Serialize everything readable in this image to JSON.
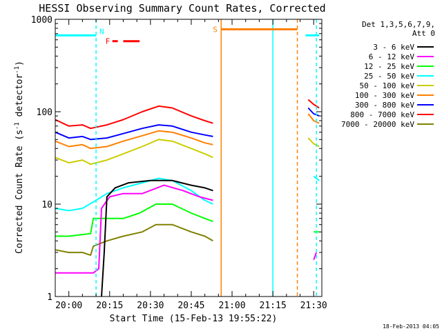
{
  "chart_data": {
    "type": "line",
    "title": "HESSI Observing Summary Count Rates, Corrected",
    "ylabel_main": "Corrected Count Rate (s",
    "ylabel_sup1": "-1",
    "ylabel_mid": " detector",
    "ylabel_sup2": "-1",
    "ylabel_end": ")",
    "xlabel": "Start Time (15-Feb-13 19:55:22)",
    "footer": "18-Feb-2013 04:05",
    "y_scale": "log",
    "ylim": [
      1,
      1000
    ],
    "xlim": [
      "19:55",
      "21:33"
    ],
    "grid": false,
    "x_ticks": [
      "20:00",
      "20:15",
      "20:30",
      "20:45",
      "21:00",
      "21:15",
      "21:30"
    ],
    "y_ticks": [
      "1",
      "10",
      "100",
      "1000"
    ],
    "legend": {
      "position": "right",
      "header_line1": "Det 1,3,5,6,7,9,",
      "header_line2": "Att 0"
    },
    "series": [
      {
        "name": "3 - 6 keV",
        "color": "#000000",
        "segments": [
          [
            [
              "20:12",
              1
            ],
            [
              "20:13",
              3
            ],
            [
              "20:14",
              12
            ],
            [
              "20:17",
              15
            ],
            [
              "20:22",
              17
            ],
            [
              "20:30",
              18
            ],
            [
              "20:38",
              18
            ],
            [
              "20:45",
              16
            ],
            [
              "20:50",
              15
            ],
            [
              "20:53",
              14
            ]
          ]
        ]
      },
      {
        "name": "6 - 12 keV",
        "color": "#ff00ff",
        "segments": [
          [
            [
              "19:55",
              1.8
            ],
            [
              "20:00",
              1.8
            ],
            [
              "20:05",
              1.8
            ],
            [
              "20:09",
              1.8
            ],
            [
              "20:11",
              2
            ],
            [
              "20:12",
              9
            ],
            [
              "20:15",
              12
            ],
            [
              "20:20",
              13
            ],
            [
              "20:27",
              13
            ],
            [
              "20:35",
              16
            ],
            [
              "20:42",
              14
            ],
            [
              "20:48",
              12
            ],
            [
              "20:53",
              11
            ]
          ],
          [
            [
              "21:30",
              2.5
            ],
            [
              "21:31",
              3
            ]
          ]
        ]
      },
      {
        "name": "12 - 25 keV",
        "color": "#00ff00",
        "segments": [
          [
            [
              "19:55",
              4.5
            ],
            [
              "20:00",
              4.5
            ],
            [
              "20:08",
              4.8
            ],
            [
              "20:09",
              7
            ],
            [
              "20:14",
              7
            ],
            [
              "20:20",
              7
            ],
            [
              "20:26",
              8
            ],
            [
              "20:32",
              10
            ],
            [
              "20:38",
              10
            ],
            [
              "20:45",
              8
            ],
            [
              "20:50",
              7
            ],
            [
              "20:53",
              6.5
            ]
          ],
          [
            [
              "21:30",
              5
            ],
            [
              "21:32",
              5
            ]
          ]
        ]
      },
      {
        "name": "25 - 50 keV",
        "color": "#00ffff",
        "segments": [
          [
            [
              "19:55",
              9
            ],
            [
              "20:00",
              8.5
            ],
            [
              "20:05",
              9
            ],
            [
              "20:10",
              11
            ],
            [
              "20:14",
              13
            ],
            [
              "20:20",
              15
            ],
            [
              "20:27",
              17
            ],
            [
              "20:33",
              19
            ],
            [
              "20:38",
              18
            ],
            [
              "20:45",
              14
            ],
            [
              "20:50",
              11
            ],
            [
              "20:53",
              10
            ]
          ],
          [
            [
              "21:30",
              20
            ],
            [
              "21:32",
              18
            ]
          ]
        ]
      },
      {
        "name": "50 - 100 keV",
        "color": "#cccc00",
        "segments": [
          [
            [
              "19:55",
              32
            ],
            [
              "20:00",
              28
            ],
            [
              "20:05",
              30
            ],
            [
              "20:08",
              27
            ],
            [
              "20:14",
              30
            ],
            [
              "20:20",
              35
            ],
            [
              "20:27",
              42
            ],
            [
              "20:33",
              50
            ],
            [
              "20:38",
              48
            ],
            [
              "20:45",
              40
            ],
            [
              "20:50",
              35
            ],
            [
              "20:53",
              32
            ]
          ],
          [
            [
              "21:28",
              52
            ],
            [
              "21:30",
              45
            ],
            [
              "21:32",
              42
            ]
          ]
        ]
      },
      {
        "name": "100 - 300 keV",
        "color": "#ff8000",
        "segments": [
          [
            [
              "19:55",
              48
            ],
            [
              "20:00",
              42
            ],
            [
              "20:05",
              44
            ],
            [
              "20:08",
              40
            ],
            [
              "20:14",
              42
            ],
            [
              "20:20",
              48
            ],
            [
              "20:27",
              55
            ],
            [
              "20:33",
              62
            ],
            [
              "20:38",
              60
            ],
            [
              "20:45",
              52
            ],
            [
              "20:50",
              46
            ],
            [
              "20:53",
              44
            ]
          ],
          [
            [
              "21:28",
              95
            ],
            [
              "21:30",
              80
            ],
            [
              "21:32",
              75
            ]
          ]
        ]
      },
      {
        "name": "300 - 800 keV",
        "color": "#0000ff",
        "segments": [
          [
            [
              "19:55",
              60
            ],
            [
              "20:00",
              52
            ],
            [
              "20:05",
              54
            ],
            [
              "20:08",
              50
            ],
            [
              "20:14",
              52
            ],
            [
              "20:20",
              58
            ],
            [
              "20:27",
              66
            ],
            [
              "20:33",
              72
            ],
            [
              "20:38",
              70
            ],
            [
              "20:45",
              60
            ],
            [
              "20:50",
              56
            ],
            [
              "20:53",
              54
            ]
          ],
          [
            [
              "21:28",
              110
            ],
            [
              "21:30",
              95
            ],
            [
              "21:32",
              90
            ]
          ]
        ]
      },
      {
        "name": "800 - 7000 keV",
        "color": "#ff0000",
        "segments": [
          [
            [
              "19:55",
              82
            ],
            [
              "20:00",
              70
            ],
            [
              "20:05",
              72
            ],
            [
              "20:08",
              66
            ],
            [
              "20:14",
              72
            ],
            [
              "20:20",
              82
            ],
            [
              "20:27",
              100
            ],
            [
              "20:33",
              115
            ],
            [
              "20:38",
              110
            ],
            [
              "20:45",
              90
            ],
            [
              "20:50",
              80
            ],
            [
              "20:53",
              75
            ]
          ],
          [
            [
              "21:28",
              135
            ],
            [
              "21:30",
              120
            ],
            [
              "21:32",
              110
            ]
          ]
        ]
      },
      {
        "name": "7000 - 20000 keV",
        "color": "#808000",
        "segments": [
          [
            [
              "19:55",
              3.2
            ],
            [
              "20:00",
              3
            ],
            [
              "20:05",
              3
            ],
            [
              "20:08",
              2.8
            ],
            [
              "20:09",
              3.5
            ],
            [
              "20:14",
              4
            ],
            [
              "20:20",
              4.5
            ],
            [
              "20:27",
              5
            ],
            [
              "20:32",
              6
            ],
            [
              "20:38",
              6
            ],
            [
              "20:45",
              5
            ],
            [
              "20:50",
              4.5
            ],
            [
              "20:53",
              4
            ]
          ]
        ]
      }
    ],
    "annotations": {
      "flare_bars": {
        "label": "F",
        "color": "#ff0000",
        "intervals": [
          [
            "20:16",
            "20:18"
          ],
          [
            "20:20",
            "20:26"
          ]
        ],
        "level": 580
      },
      "saa_bar": {
        "label": "S",
        "color": "#ff8000",
        "intervals": [
          [
            "20:56",
            "21:24"
          ]
        ],
        "level": 780
      },
      "night_bars": {
        "color": "#00ffff",
        "intervals": [
          [
            "19:55",
            "20:10"
          ],
          [
            "21:27",
            "21:32"
          ]
        ],
        "level": 670
      },
      "n_label": {
        "label": "N",
        "color": "#00ffff",
        "at": "20:11"
      },
      "vlines": [
        {
          "at": "20:10",
          "color": "#00ffff",
          "style": "dashed"
        },
        {
          "at": "20:56",
          "color": "#ff8000",
          "style": "solid"
        },
        {
          "at": "21:15",
          "color": "#00ffff",
          "style": "solid"
        },
        {
          "at": "21:24",
          "color": "#ff8000",
          "style": "dashed"
        },
        {
          "at": "21:31",
          "color": "#00ffff",
          "style": "dashed"
        }
      ]
    }
  }
}
